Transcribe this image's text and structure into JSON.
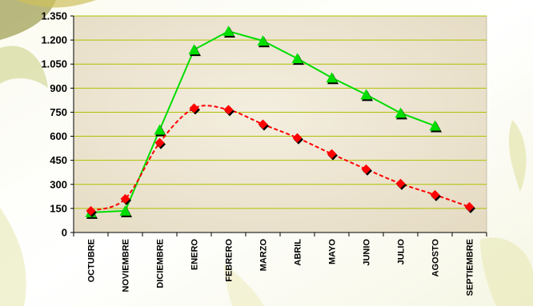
{
  "chart_data": {
    "type": "line",
    "title": "",
    "xlabel": "",
    "ylabel": "",
    "categories": [
      "OCTUBRE",
      "NOVIEMBRE",
      "DICIEMBRE",
      "ENERO",
      "FEBRERO",
      "MARZO",
      "ABRIL",
      "MAYO",
      "JUNIO",
      "JULIO",
      "AGOSTO",
      "SEPTIEMBRE"
    ],
    "ylim": [
      0,
      1350
    ],
    "yticks": [
      0,
      150,
      300,
      450,
      600,
      750,
      900,
      1050,
      1200,
      1350
    ],
    "ytick_labels": [
      "0",
      "150",
      "300",
      "450",
      "600",
      "750",
      "900",
      "1.050",
      "1.200",
      "1.350"
    ],
    "grid": true,
    "legend": "none",
    "series": [
      {
        "color": "#00dd00",
        "marker": "triangle",
        "line_style": "solid",
        "smooth": false,
        "values": [
          125,
          135,
          640,
          1140,
          1255,
          1195,
          1085,
          965,
          860,
          745,
          665,
          null
        ]
      },
      {
        "color": "#ff0000",
        "marker": "diamond",
        "line_style": "dashed",
        "smooth": true,
        "values": [
          135,
          210,
          560,
          775,
          765,
          675,
          590,
          490,
          395,
          305,
          235,
          160
        ]
      }
    ],
    "colors": {
      "plot_background": "#eee6d4",
      "gridline": "#b0c000",
      "axis": "#000000",
      "marker_shadow": "#000000"
    }
  }
}
